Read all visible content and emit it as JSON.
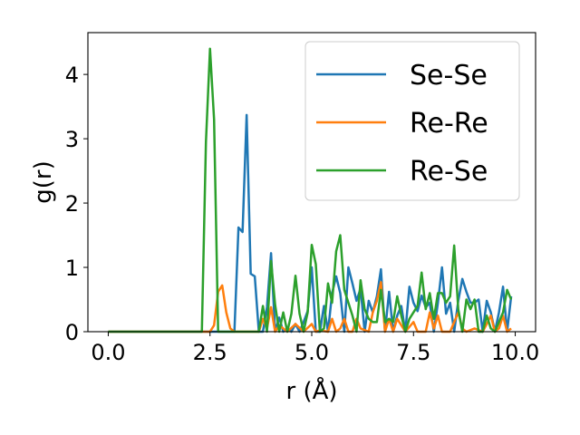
{
  "chart_data": {
    "type": "line",
    "title": "",
    "xlabel": "r (Å)",
    "ylabel": "g(r)",
    "xlim": [
      -0.5,
      10.5
    ],
    "ylim": [
      0,
      4.65
    ],
    "xticks": [
      0.0,
      2.5,
      5.0,
      7.5,
      10.0
    ],
    "xtick_labels": [
      "0.0",
      "2.5",
      "5.0",
      "7.5",
      "10.0"
    ],
    "yticks": [
      0,
      1,
      2,
      3,
      4
    ],
    "ytick_labels": [
      "0",
      "1",
      "2",
      "3",
      "4"
    ],
    "grid": false,
    "legend_position": "top-right",
    "series": [
      {
        "name": "Se-Se",
        "color": "#1f77b4",
        "x": [
          0.0,
          3.0,
          3.1,
          3.2,
          3.3,
          3.4,
          3.5,
          3.6,
          3.7,
          3.8,
          3.9,
          4.0,
          4.1,
          4.2,
          4.3,
          4.4,
          4.5,
          4.6,
          4.7,
          4.8,
          4.9,
          5.0,
          5.1,
          5.2,
          5.3,
          5.4,
          5.5,
          5.6,
          5.7,
          5.8,
          5.9,
          6.0,
          6.1,
          6.2,
          6.3,
          6.4,
          6.5,
          6.6,
          6.7,
          6.8,
          6.9,
          7.0,
          7.1,
          7.2,
          7.3,
          7.4,
          7.5,
          7.6,
          7.7,
          7.8,
          7.9,
          8.0,
          8.1,
          8.2,
          8.3,
          8.4,
          8.5,
          8.6,
          8.7,
          8.8,
          8.9,
          9.0,
          9.1,
          9.2,
          9.3,
          9.4,
          9.5,
          9.6,
          9.7,
          9.8,
          9.9
        ],
        "y": [
          0.0,
          0.0,
          0.0,
          1.62,
          1.55,
          3.37,
          0.9,
          0.86,
          0.0,
          0.0,
          0.38,
          1.22,
          0.0,
          0.22,
          0.0,
          0.05,
          0.0,
          0.12,
          0.0,
          0.15,
          0.32,
          1.0,
          0.0,
          0.0,
          0.4,
          0.0,
          0.6,
          0.86,
          0.6,
          0.0,
          1.0,
          0.75,
          0.48,
          0.67,
          0.0,
          0.48,
          0.3,
          0.55,
          0.97,
          0.0,
          0.62,
          0.0,
          0.25,
          0.4,
          0.0,
          0.7,
          0.45,
          0.32,
          0.56,
          0.38,
          0.45,
          0.0,
          0.45,
          1.0,
          0.28,
          0.45,
          0.0,
          0.48,
          0.82,
          0.62,
          0.45,
          0.45,
          0.5,
          0.0,
          0.48,
          0.3,
          0.0,
          0.3,
          0.7,
          0.0,
          0.55
        ]
      },
      {
        "name": "Re-Re",
        "color": "#ff7f0e",
        "x": [
          0.0,
          2.5,
          2.6,
          2.7,
          2.8,
          2.9,
          3.0,
          3.1,
          3.7,
          3.8,
          3.9,
          4.0,
          4.1,
          4.2,
          4.4,
          4.6,
          4.8,
          5.0,
          5.1,
          5.2,
          5.4,
          5.5,
          5.6,
          5.7,
          5.8,
          5.9,
          6.0,
          6.1,
          6.2,
          6.4,
          6.5,
          6.6,
          6.7,
          6.8,
          6.9,
          7.0,
          7.1,
          7.3,
          7.5,
          7.6,
          7.8,
          7.9,
          8.0,
          8.1,
          8.2,
          8.4,
          8.5,
          8.6,
          8.7,
          8.8,
          9.0,
          9.2,
          9.3,
          9.4,
          9.5,
          9.6,
          9.7,
          9.8,
          9.9
        ],
        "y": [
          0.0,
          0.0,
          0.1,
          0.62,
          0.72,
          0.3,
          0.05,
          0.0,
          0.0,
          0.2,
          0.05,
          0.38,
          0.0,
          0.1,
          0.0,
          0.12,
          0.0,
          0.12,
          0.0,
          0.02,
          0.0,
          0.2,
          0.0,
          0.05,
          0.2,
          0.0,
          0.0,
          0.2,
          0.05,
          0.0,
          0.3,
          0.48,
          0.77,
          0.0,
          0.2,
          0.0,
          0.2,
          0.0,
          0.15,
          0.0,
          0.0,
          0.3,
          0.05,
          0.25,
          0.0,
          0.0,
          0.15,
          0.3,
          0.05,
          0.0,
          0.05,
          0.0,
          0.12,
          0.25,
          0.0,
          0.05,
          0.25,
          0.0,
          0.05
        ]
      },
      {
        "name": "Re-Se",
        "color": "#2ca02c",
        "x": [
          0.0,
          2.3,
          2.4,
          2.5,
          2.6,
          2.7,
          3.7,
          3.8,
          3.9,
          4.0,
          4.1,
          4.2,
          4.3,
          4.4,
          4.5,
          4.6,
          4.7,
          4.8,
          4.9,
          5.0,
          5.1,
          5.2,
          5.3,
          5.4,
          5.5,
          5.6,
          5.7,
          5.8,
          5.9,
          6.0,
          6.1,
          6.2,
          6.3,
          6.4,
          6.5,
          6.6,
          6.7,
          6.8,
          6.9,
          7.0,
          7.1,
          7.2,
          7.3,
          7.4,
          7.5,
          7.6,
          7.7,
          7.8,
          7.9,
          8.0,
          8.1,
          8.2,
          8.3,
          8.4,
          8.5,
          8.6,
          8.7,
          8.8,
          8.9,
          9.0,
          9.1,
          9.2,
          9.3,
          9.4,
          9.5,
          9.6,
          9.7,
          9.8,
          9.9
        ],
        "y": [
          0.0,
          0.0,
          2.95,
          4.4,
          3.3,
          0.0,
          0.0,
          0.4,
          0.0,
          1.1,
          0.42,
          0.0,
          0.3,
          0.0,
          0.28,
          0.87,
          0.28,
          0.0,
          0.3,
          1.35,
          1.05,
          0.0,
          0.05,
          0.75,
          0.45,
          1.25,
          1.5,
          0.65,
          0.45,
          0.25,
          0.0,
          0.8,
          0.35,
          0.2,
          0.15,
          0.15,
          0.65,
          0.15,
          0.2,
          0.15,
          0.55,
          0.25,
          0.0,
          0.2,
          0.3,
          0.4,
          0.92,
          0.35,
          0.6,
          0.2,
          0.6,
          0.6,
          0.45,
          0.55,
          1.34,
          0.35,
          0.0,
          0.5,
          0.35,
          0.5,
          0.0,
          0.0,
          0.25,
          0.05,
          0.0,
          0.15,
          0.3,
          0.65,
          0.5
        ]
      }
    ]
  }
}
